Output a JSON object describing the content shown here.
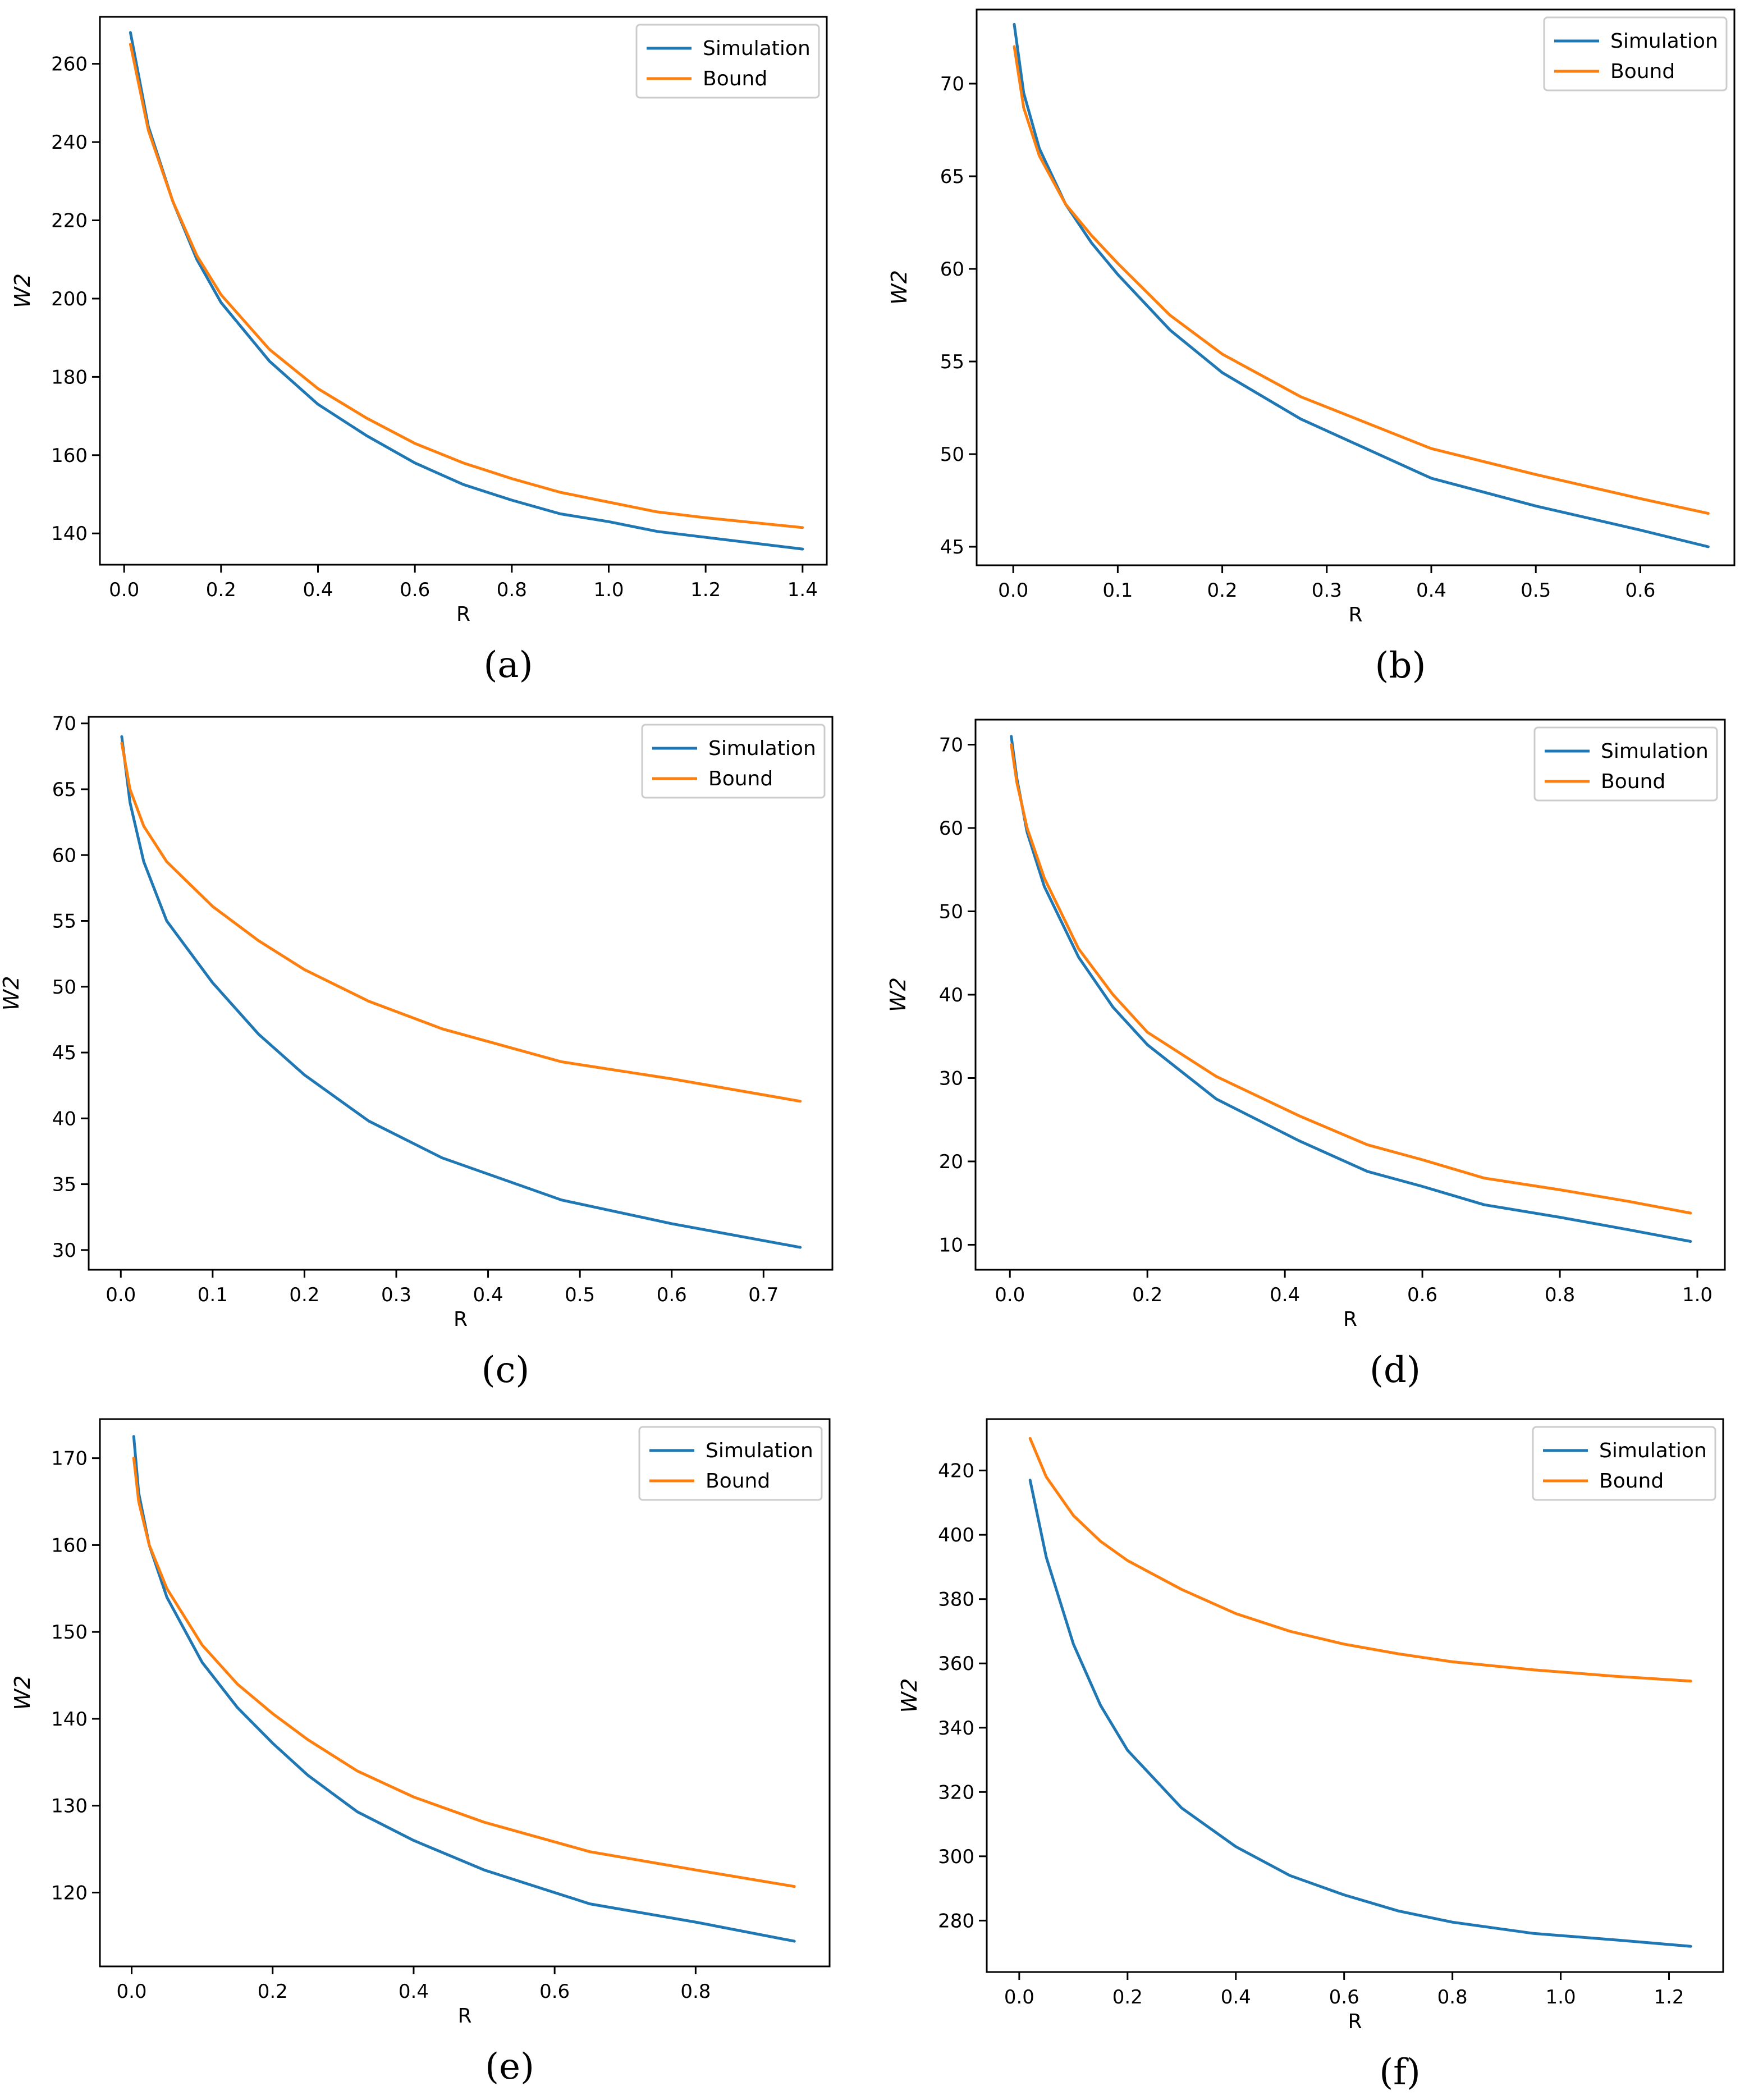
{
  "figure_title": "",
  "colors": {
    "simulation": "#1f77b4",
    "bound": "#ff7f0e",
    "axes": "#000000",
    "legend_border": "#cccccc"
  },
  "chart_data": [
    {
      "panel": "(a)",
      "type": "line",
      "xlabel": "R",
      "ylabel": "W2",
      "xlim": [
        -0.05,
        1.45
      ],
      "ylim": [
        132,
        272
      ],
      "xticks": [
        0.0,
        0.2,
        0.4,
        0.6,
        0.8,
        1.0,
        1.2,
        1.4
      ],
      "xtick_labels": [
        "0.0",
        "0.2",
        "0.4",
        "0.6",
        "0.8",
        "1.0",
        "1.2",
        "1.4"
      ],
      "yticks": [
        140,
        160,
        180,
        200,
        220,
        240,
        260
      ],
      "ytick_labels": [
        "140",
        "160",
        "180",
        "200",
        "220",
        "240",
        "260"
      ],
      "legend": [
        "Simulation",
        "Bound"
      ],
      "legend_loc": "top-right",
      "series": [
        {
          "name": "Simulation",
          "x": [
            0.013,
            0.05,
            0.1,
            0.15,
            0.2,
            0.3,
            0.4,
            0.5,
            0.6,
            0.7,
            0.8,
            0.9,
            1.0,
            1.1,
            1.2,
            1.4
          ],
          "values": [
            268,
            244,
            225,
            210,
            199,
            184,
            173,
            165,
            158,
            152.5,
            148.5,
            145,
            143,
            140.5,
            139,
            136
          ]
        },
        {
          "name": "Bound",
          "x": [
            0.013,
            0.05,
            0.1,
            0.15,
            0.2,
            0.3,
            0.4,
            0.5,
            0.6,
            0.7,
            0.8,
            0.9,
            1.0,
            1.1,
            1.2,
            1.4
          ],
          "values": [
            265,
            243,
            225,
            211,
            201,
            187,
            177,
            169.5,
            163,
            158,
            154,
            150.5,
            148,
            145.5,
            144,
            141.5
          ]
        }
      ]
    },
    {
      "panel": "(b)",
      "type": "line",
      "xlabel": "R",
      "ylabel": "W2",
      "xlim": [
        -0.035,
        0.69
      ],
      "ylim": [
        44,
        74
      ],
      "xticks": [
        0.0,
        0.1,
        0.2,
        0.3,
        0.4,
        0.5,
        0.6
      ],
      "xtick_labels": [
        "0.0",
        "0.1",
        "0.2",
        "0.3",
        "0.4",
        "0.5",
        "0.6"
      ],
      "yticks": [
        45,
        50,
        55,
        60,
        65,
        70
      ],
      "ytick_labels": [
        "45",
        "50",
        "55",
        "60",
        "65",
        "70"
      ],
      "legend": [
        "Simulation",
        "Bound"
      ],
      "legend_loc": "top-right",
      "series": [
        {
          "name": "Simulation",
          "x": [
            0.001,
            0.01,
            0.025,
            0.05,
            0.075,
            0.1,
            0.15,
            0.2,
            0.275,
            0.4,
            0.5,
            0.6,
            0.665
          ],
          "values": [
            73.2,
            69.5,
            66.5,
            63.5,
            61.4,
            59.7,
            56.7,
            54.4,
            51.9,
            48.7,
            47.2,
            45.9,
            45
          ]
        },
        {
          "name": "Bound",
          "x": [
            0.001,
            0.01,
            0.025,
            0.05,
            0.075,
            0.1,
            0.15,
            0.2,
            0.275,
            0.4,
            0.5,
            0.6,
            0.665
          ],
          "values": [
            72,
            68.7,
            66.1,
            63.5,
            61.8,
            60.3,
            57.5,
            55.4,
            53.1,
            50.3,
            48.9,
            47.6,
            46.8
          ]
        }
      ]
    },
    {
      "panel": "(c)",
      "type": "line",
      "xlabel": "R",
      "ylabel": "W2",
      "xlim": [
        -0.035,
        0.775
      ],
      "ylim": [
        28.5,
        70.5
      ],
      "xticks": [
        0.0,
        0.1,
        0.2,
        0.3,
        0.4,
        0.5,
        0.6,
        0.7
      ],
      "xtick_labels": [
        "0.0",
        "0.1",
        "0.2",
        "0.3",
        "0.4",
        "0.5",
        "0.6",
        "0.7"
      ],
      "yticks": [
        30,
        35,
        40,
        45,
        50,
        55,
        60,
        65,
        70
      ],
      "ytick_labels": [
        "30",
        "35",
        "40",
        "45",
        "50",
        "55",
        "60",
        "65",
        "70"
      ],
      "legend": [
        "Simulation",
        "Bound"
      ],
      "legend_loc": "top-right",
      "series": [
        {
          "name": "Simulation",
          "x": [
            0.001,
            0.01,
            0.025,
            0.05,
            0.1,
            0.15,
            0.2,
            0.27,
            0.35,
            0.48,
            0.6,
            0.74
          ],
          "values": [
            69,
            64,
            59.5,
            55,
            50.3,
            46.4,
            43.3,
            39.8,
            37,
            33.8,
            32,
            30.2
          ]
        },
        {
          "name": "Bound",
          "x": [
            0.001,
            0.01,
            0.025,
            0.05,
            0.1,
            0.15,
            0.2,
            0.27,
            0.35,
            0.48,
            0.6,
            0.74
          ],
          "values": [
            68.5,
            65,
            62.2,
            59.5,
            56.1,
            53.5,
            51.3,
            48.9,
            46.8,
            44.3,
            43,
            41.3
          ]
        }
      ]
    },
    {
      "panel": "(d)",
      "type": "line",
      "xlabel": "R",
      "ylabel": "W2",
      "xlim": [
        -0.05,
        1.04
      ],
      "ylim": [
        7,
        73
      ],
      "xticks": [
        0.0,
        0.2,
        0.4,
        0.6,
        0.8,
        1.0
      ],
      "xtick_labels": [
        "0.0",
        "0.2",
        "0.4",
        "0.6",
        "0.8",
        "1.0"
      ],
      "yticks": [
        10,
        20,
        30,
        40,
        50,
        60,
        70
      ],
      "ytick_labels": [
        "10",
        "20",
        "30",
        "40",
        "50",
        "60",
        "70"
      ],
      "legend": [
        "Simulation",
        "Bound"
      ],
      "legend_loc": "top-right",
      "series": [
        {
          "name": "Simulation",
          "x": [
            0.002,
            0.01,
            0.025,
            0.05,
            0.1,
            0.15,
            0.2,
            0.3,
            0.42,
            0.52,
            0.6,
            0.69,
            0.8,
            0.9,
            0.99
          ],
          "values": [
            71,
            66,
            59.5,
            53,
            44.5,
            38.5,
            34,
            27.5,
            22.5,
            18.8,
            17,
            14.8,
            13.3,
            11.8,
            10.4
          ]
        },
        {
          "name": "Bound",
          "x": [
            0.002,
            0.01,
            0.025,
            0.05,
            0.1,
            0.15,
            0.2,
            0.3,
            0.42,
            0.52,
            0.6,
            0.69,
            0.8,
            0.9,
            0.99
          ],
          "values": [
            70,
            65.5,
            60,
            54,
            45.5,
            40,
            35.5,
            30.2,
            25.5,
            22,
            20.2,
            18,
            16.6,
            15.2,
            13.8
          ]
        }
      ]
    },
    {
      "panel": "(e)",
      "type": "line",
      "xlabel": "R",
      "ylabel": "W2",
      "xlim": [
        -0.045,
        0.99
      ],
      "ylim": [
        111.5,
        174.5
      ],
      "xticks": [
        0.0,
        0.2,
        0.4,
        0.6,
        0.8
      ],
      "xtick_labels": [
        "0.0",
        "0.2",
        "0.4",
        "0.6",
        "0.8"
      ],
      "yticks": [
        120,
        130,
        140,
        150,
        160,
        170
      ],
      "ytick_labels": [
        "120",
        "130",
        "140",
        "150",
        "160",
        "170"
      ],
      "legend": [
        "Simulation",
        "Bound"
      ],
      "legend_loc": "top-right",
      "series": [
        {
          "name": "Simulation",
          "x": [
            0.003,
            0.01,
            0.025,
            0.05,
            0.1,
            0.15,
            0.2,
            0.25,
            0.32,
            0.4,
            0.5,
            0.65,
            0.8,
            0.94
          ],
          "values": [
            172.5,
            166,
            160,
            154,
            146.5,
            141.3,
            137.2,
            133.5,
            129.3,
            126,
            122.6,
            118.7,
            116.6,
            114.4
          ]
        },
        {
          "name": "Bound",
          "x": [
            0.003,
            0.01,
            0.025,
            0.05,
            0.1,
            0.15,
            0.2,
            0.25,
            0.32,
            0.4,
            0.5,
            0.65,
            0.8,
            0.94
          ],
          "values": [
            170,
            165,
            160,
            155,
            148.5,
            144,
            140.6,
            137.6,
            134,
            131,
            128.1,
            124.7,
            122.6,
            120.7
          ]
        }
      ]
    },
    {
      "panel": "(f)",
      "type": "line",
      "xlabel": "R",
      "ylabel": "W2",
      "xlim": [
        -0.06,
        1.3
      ],
      "ylim": [
        264,
        436
      ],
      "xticks": [
        0.0,
        0.2,
        0.4,
        0.6,
        0.8,
        1.0,
        1.2
      ],
      "xtick_labels": [
        "0.0",
        "0.2",
        "0.4",
        "0.6",
        "0.8",
        "1.0",
        "1.2"
      ],
      "yticks": [
        280,
        300,
        320,
        340,
        360,
        380,
        400,
        420
      ],
      "ytick_labels": [
        "280",
        "300",
        "320",
        "340",
        "360",
        "380",
        "400",
        "420"
      ],
      "legend": [
        "Simulation",
        "Bound"
      ],
      "legend_loc": "top-right",
      "series": [
        {
          "name": "Simulation",
          "x": [
            0.02,
            0.05,
            0.1,
            0.15,
            0.2,
            0.3,
            0.4,
            0.5,
            0.6,
            0.7,
            0.8,
            0.95,
            1.1,
            1.24
          ],
          "values": [
            417,
            393,
            366,
            347,
            333,
            315,
            303,
            294,
            288,
            283,
            279.5,
            276,
            274,
            272
          ]
        },
        {
          "name": "Bound",
          "x": [
            0.02,
            0.05,
            0.1,
            0.15,
            0.2,
            0.3,
            0.4,
            0.5,
            0.6,
            0.7,
            0.8,
            0.95,
            1.1,
            1.24
          ],
          "values": [
            430,
            418,
            406,
            398,
            392,
            383,
            375.5,
            370,
            366,
            363,
            360.5,
            358,
            356,
            354.5
          ]
        }
      ]
    }
  ]
}
